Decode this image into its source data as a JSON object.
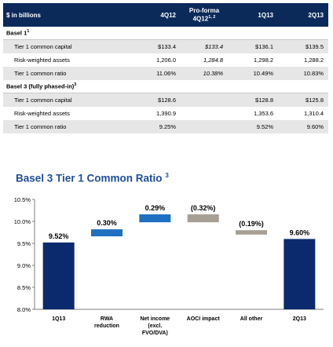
{
  "table": {
    "headers": {
      "label": "$ in billions",
      "q4_12": "4Q12",
      "pro_forma_line1": "Pro-forma",
      "pro_forma_line2": "4Q12",
      "pro_forma_sup": "1, 2",
      "q1_13": "1Q13",
      "q2_13": "2Q13"
    },
    "basel1": {
      "title": "Basel 1",
      "title_sup": "1",
      "rows": [
        {
          "label": "Tier 1 common capital",
          "q4_12": "$133.4",
          "pro_forma": "$133.4",
          "q1_13": "$136.1",
          "q2_13": "$139.5"
        },
        {
          "label": "Risk-weighted assets",
          "q4_12": "1,206.0",
          "pro_forma": "1,284.8",
          "q1_13": "1,298.2",
          "q2_13": "1,288.2"
        },
        {
          "label": "Tier 1 common ratio",
          "q4_12": "11.06%",
          "pro_forma": "10.38%",
          "q1_13": "10.49%",
          "q2_13": "10.83%"
        }
      ]
    },
    "basel3": {
      "title": "Basel 3 (fully phased-in)",
      "title_sup": "3",
      "rows": [
        {
          "label": "Tier 1 common capital",
          "q4_12": "$128.6",
          "pro_forma": "",
          "q1_13": "$128.8",
          "q2_13": "$125.8"
        },
        {
          "label": "Risk-weighted assets",
          "q4_12": "1,390.9",
          "pro_forma": "",
          "q1_13": "1,353.6",
          "q2_13": "1,310.4"
        },
        {
          "label": "Tier 1 common ratio",
          "q4_12": "9.25%",
          "pro_forma": "",
          "q1_13": "9.52%",
          "q2_13": "9.60%"
        }
      ]
    }
  },
  "chart_title": "Basel 3 Tier 1 Common Ratio",
  "chart_title_sup": "3",
  "chart_data": {
    "type": "bar",
    "subtype": "waterfall",
    "categories": [
      "1Q13",
      "RWA reduction",
      "Net income (excl. FVO/DVA)",
      "AOCI impact",
      "All other",
      "2Q13"
    ],
    "category_lines": [
      [
        "1Q13"
      ],
      [
        "RWA",
        "reduction"
      ],
      [
        "Net income",
        "(excl.",
        "FVO/DVA)"
      ],
      [
        "AOCI impact"
      ],
      [
        "All other"
      ],
      [
        "2Q13"
      ]
    ],
    "bars": [
      {
        "kind": "total",
        "start": 8.0,
        "end": 9.52,
        "label": "9.52%",
        "color": "#0b2a6e"
      },
      {
        "kind": "increase",
        "start": 9.66,
        "end": 9.82,
        "label": "0.30%",
        "color": "#1f70c1"
      },
      {
        "kind": "increase",
        "start": 9.98,
        "end": 10.16,
        "label": "0.29%",
        "color": "#1f70c1"
      },
      {
        "kind": "decrease",
        "start": 9.98,
        "end": 10.16,
        "label": "(0.32%)",
        "color": "#a89f94"
      },
      {
        "kind": "decrease",
        "start": 9.7,
        "end": 9.8,
        "label": "(0.19%)",
        "color": "#a89f94"
      },
      {
        "kind": "total",
        "start": 8.0,
        "end": 9.6,
        "label": "9.60%",
        "color": "#0b2a6e"
      }
    ],
    "y_ticks": [
      "8.0%",
      "8.5%",
      "9.0%",
      "9.5%",
      "10.0%",
      "10.5%"
    ],
    "ylim": [
      8.0,
      10.5
    ],
    "grid": false
  }
}
